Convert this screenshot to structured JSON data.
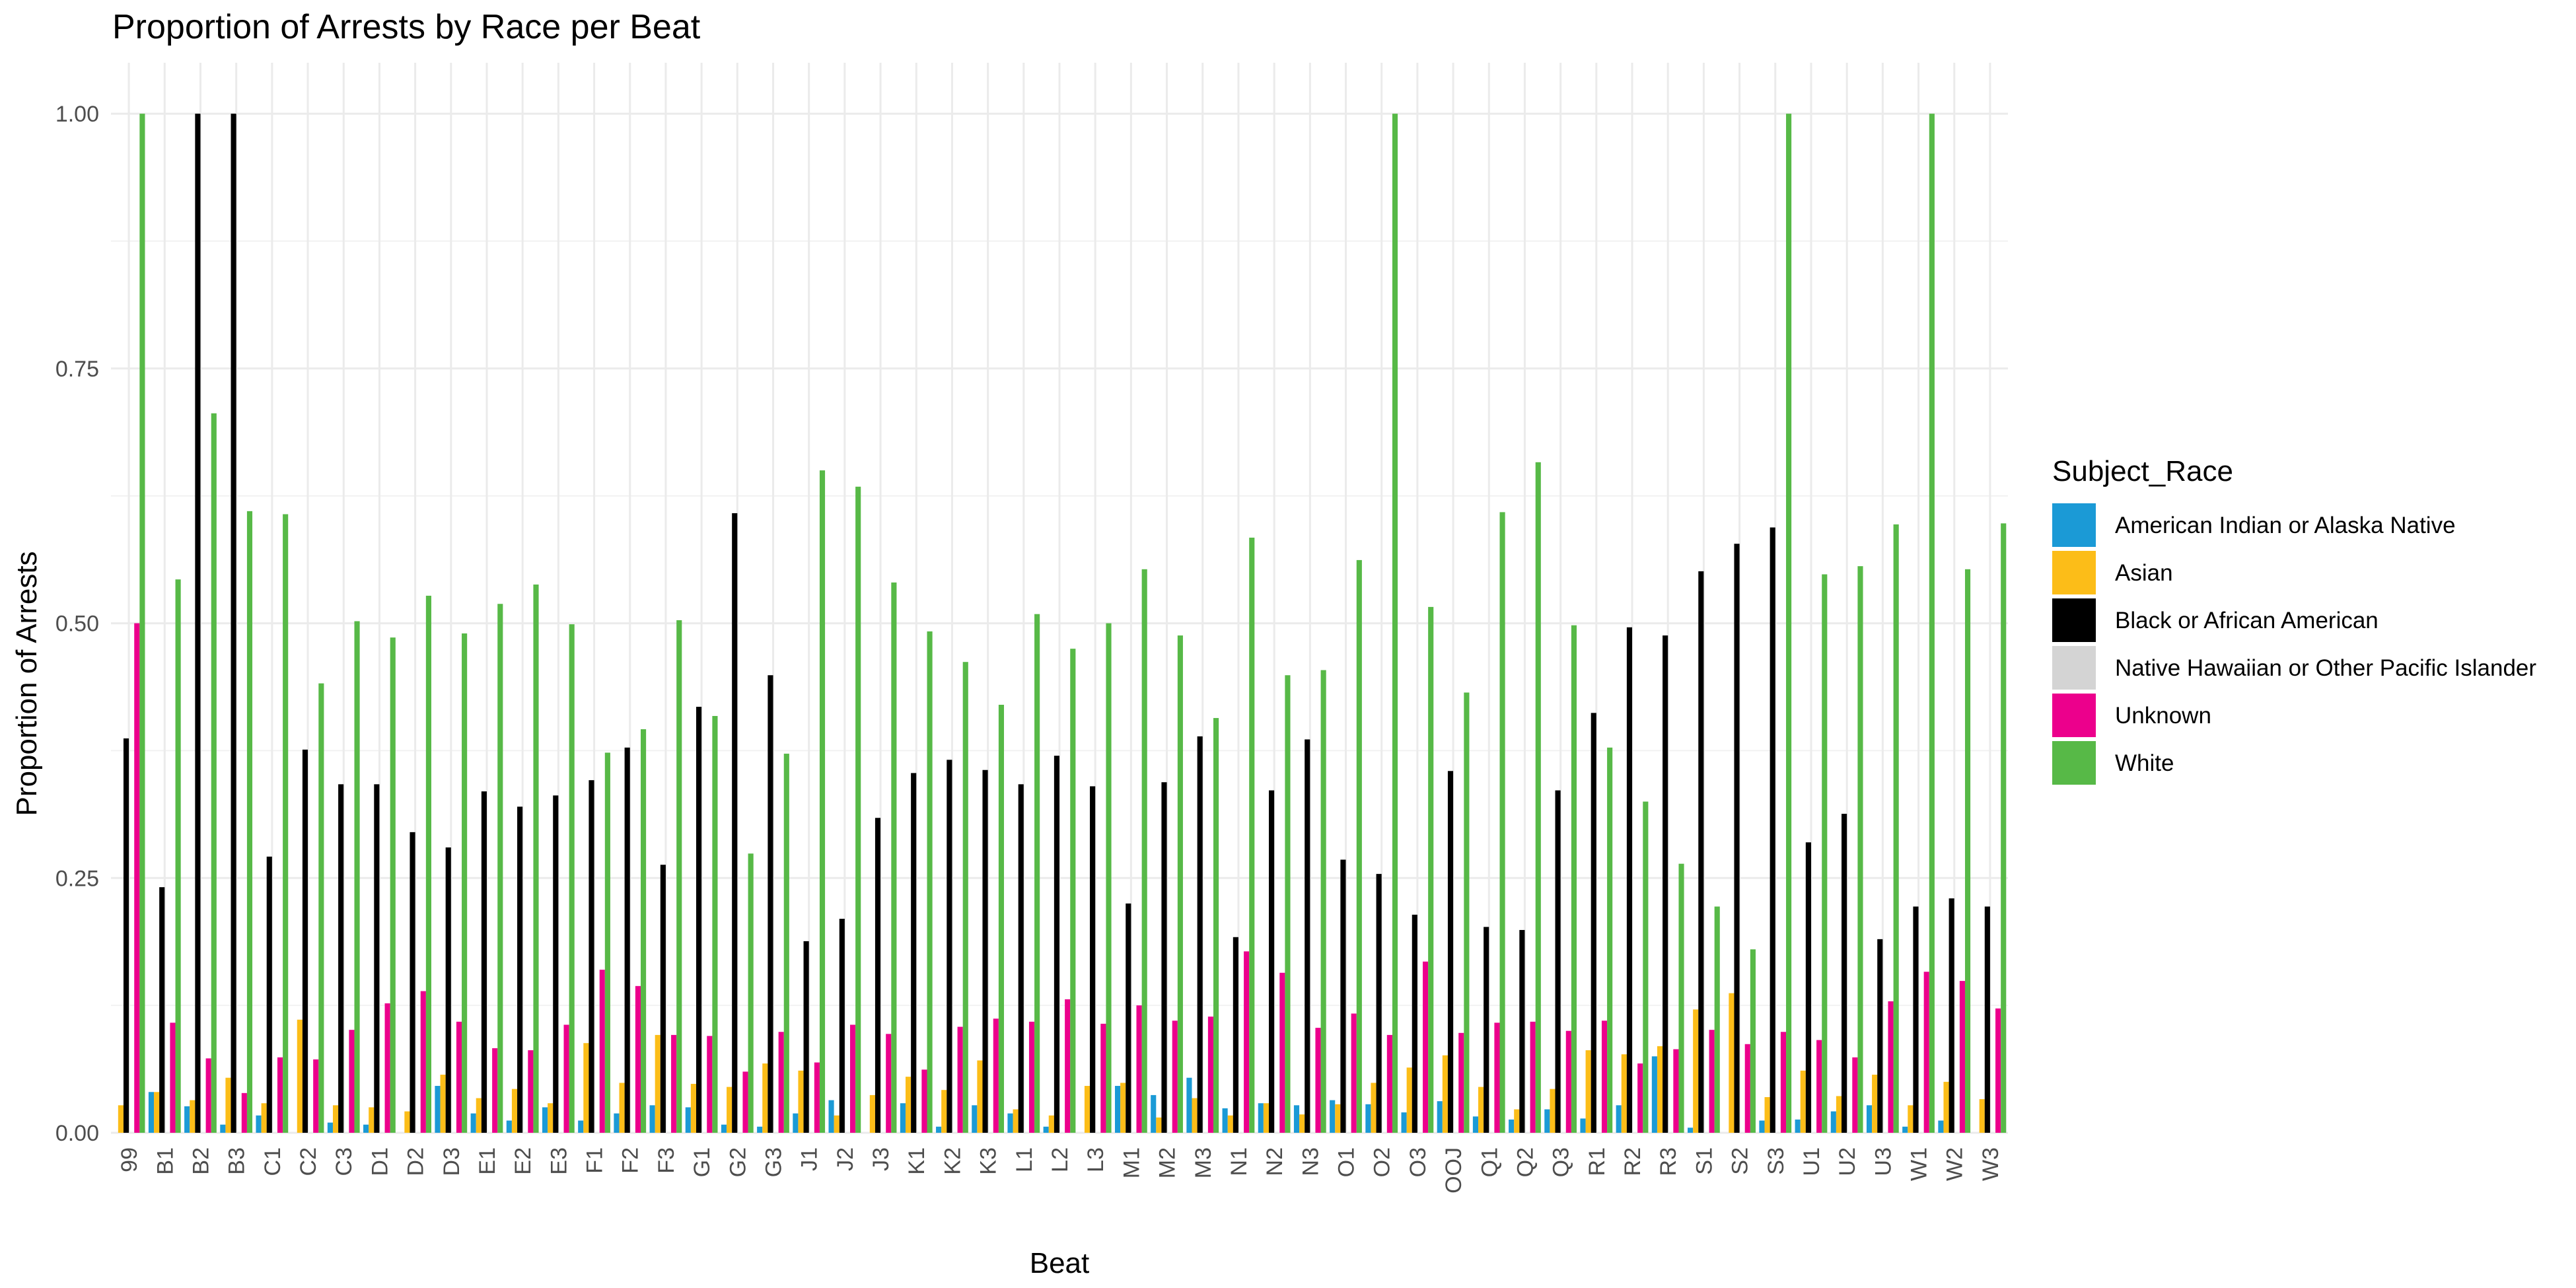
{
  "chart_data": {
    "type": "bar",
    "title": "Proportion of Arrests by Race per Beat",
    "xlabel": "Beat",
    "ylabel": "Proportion of Arrests",
    "ylim": [
      0,
      1.05
    ],
    "yticks": [
      "0.00",
      "0.25",
      "0.50",
      "0.75",
      "1.00"
    ],
    "grid": true,
    "legend_position": "right",
    "legend_title": "Subject_Race",
    "categories": [
      "99",
      "B1",
      "B2",
      "B3",
      "C1",
      "C2",
      "C3",
      "D1",
      "D2",
      "D3",
      "E1",
      "E2",
      "E3",
      "F1",
      "F2",
      "F3",
      "G1",
      "G2",
      "G3",
      "J1",
      "J2",
      "J3",
      "K1",
      "K2",
      "K3",
      "L1",
      "L2",
      "L3",
      "M1",
      "M2",
      "M3",
      "N1",
      "N2",
      "N3",
      "O1",
      "O2",
      "O3",
      "OOJ",
      "Q1",
      "Q2",
      "Q3",
      "R1",
      "R2",
      "R3",
      "S1",
      "S2",
      "S3",
      "U1",
      "U2",
      "U3",
      "W1",
      "W2",
      "W3"
    ],
    "series": [
      {
        "name": "American Indian or Alaska Native",
        "color": "#1b9ad6",
        "values": [
          0.0,
          0.04,
          0.026,
          0.008,
          0.017,
          0.0,
          0.01,
          0.008,
          0.0,
          0.046,
          0.019,
          0.012,
          0.025,
          0.012,
          0.019,
          0.027,
          0.025,
          0.008,
          0.006,
          0.019,
          0.032,
          0.0,
          0.029,
          0.006,
          0.027,
          0.019,
          0.006,
          0.0,
          0.046,
          0.037,
          0.054,
          0.024,
          0.029,
          0.027,
          0.032,
          0.028,
          0.02,
          0.031,
          0.016,
          0.013,
          0.023,
          0.014,
          0.027,
          0.075,
          0.005,
          0.0,
          0.012,
          0.013,
          0.021,
          0.027,
          0.006,
          0.012,
          0.0
        ]
      },
      {
        "name": "Asian",
        "color": "#fcbd18",
        "values": [
          0.027,
          0.04,
          0.032,
          0.054,
          0.029,
          0.111,
          0.027,
          0.025,
          0.021,
          0.057,
          0.034,
          0.043,
          0.029,
          0.088,
          0.049,
          0.096,
          0.048,
          0.045,
          0.068,
          0.061,
          0.017,
          0.037,
          0.055,
          0.042,
          0.071,
          0.023,
          0.017,
          0.046,
          0.049,
          0.015,
          0.034,
          0.017,
          0.029,
          0.018,
          0.028,
          0.049,
          0.064,
          0.076,
          0.045,
          0.023,
          0.043,
          0.081,
          0.077,
          0.085,
          0.121,
          0.137,
          0.035,
          0.061,
          0.036,
          0.057,
          0.027,
          0.05,
          0.033
        ]
      },
      {
        "name": "Black or African American",
        "color": "#000000",
        "values": [
          0.387,
          0.241,
          1.0,
          1.0,
          0.271,
          0.376,
          0.342,
          0.342,
          0.295,
          0.28,
          0.335,
          0.32,
          0.331,
          0.346,
          0.378,
          0.263,
          0.418,
          0.608,
          0.449,
          0.188,
          0.21,
          0.309,
          0.353,
          0.366,
          0.356,
          0.342,
          0.37,
          0.34,
          0.225,
          0.344,
          0.389,
          0.192,
          0.336,
          0.386,
          0.268,
          0.254,
          0.214,
          0.355,
          0.202,
          0.199,
          0.336,
          0.412,
          0.496,
          0.488,
          0.551,
          0.578,
          0.594,
          0.285,
          0.313,
          0.19,
          0.222,
          0.23,
          0.222
        ]
      },
      {
        "name": "Native Hawaiian or Other Pacific Islander",
        "color": "#d4d4d4",
        "values": [
          0.0,
          0.0,
          0.0,
          0.0,
          0.0,
          0.0,
          0.0,
          0.0,
          0.0,
          0.0,
          0.0,
          0.0,
          0.0,
          0.0,
          0.0,
          0.0,
          0.0,
          0.0,
          0.0,
          0.0,
          0.0,
          0.0,
          0.0,
          0.0,
          0.0,
          0.0,
          0.0,
          0.0,
          0.0,
          0.0,
          0.0,
          0.0,
          0.0,
          0.0,
          0.0,
          0.0,
          0.0,
          0.0,
          0.0,
          0.0,
          0.0,
          0.0,
          0.0,
          0.0,
          0.0,
          0.0,
          0.0,
          0.0,
          0.0,
          0.0,
          0.0,
          0.0,
          0.0
        ]
      },
      {
        "name": "Unknown",
        "color": "#ec008c",
        "values": [
          0.5,
          0.108,
          0.073,
          0.039,
          0.074,
          0.072,
          0.101,
          0.127,
          0.139,
          0.109,
          0.083,
          0.081,
          0.106,
          0.16,
          0.144,
          0.096,
          0.095,
          0.06,
          0.099,
          0.069,
          0.106,
          0.097,
          0.062,
          0.104,
          0.112,
          0.109,
          0.131,
          0.107,
          0.125,
          0.11,
          0.114,
          0.178,
          0.157,
          0.103,
          0.117,
          0.096,
          0.168,
          0.098,
          0.108,
          0.109,
          0.1,
          0.11,
          0.068,
          0.082,
          0.101,
          0.087,
          0.099,
          0.091,
          0.074,
          0.129,
          0.158,
          0.149,
          0.122
        ]
      },
      {
        "name": "White",
        "color": "#57b947",
        "values": [
          1.0,
          0.543,
          0.706,
          0.61,
          0.607,
          0.441,
          0.502,
          0.486,
          0.527,
          0.49,
          0.519,
          0.538,
          0.499,
          0.373,
          0.396,
          0.503,
          0.409,
          0.274,
          0.372,
          0.65,
          0.634,
          0.54,
          0.492,
          0.462,
          0.42,
          0.509,
          0.475,
          0.5,
          0.553,
          0.488,
          0.407,
          0.584,
          0.449,
          0.454,
          0.562,
          1.0,
          0.516,
          0.432,
          0.609,
          0.658,
          0.498,
          0.378,
          0.325,
          0.264,
          0.222,
          0.18,
          1.0,
          0.548,
          0.556,
          0.597,
          1.0,
          0.553,
          0.598
        ]
      }
    ]
  }
}
